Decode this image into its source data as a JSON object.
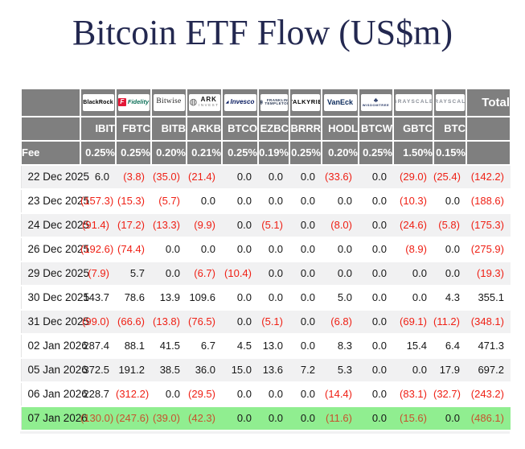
{
  "title": "Bitcoin ETF Flow (US$m)",
  "colors": {
    "header_gray": "#7f7f7f",
    "stripe_gray": "#f1f1f2",
    "highlight_green": "#90ee90",
    "negative_red": "#ef2015",
    "negative_on_green": "#c8522e",
    "title_navy": "#232850"
  },
  "table": {
    "fee_label": "Fee",
    "total_label": "Total",
    "highlight_date": "07 Jan 2026",
    "providers": [
      {
        "brand": "blackrock",
        "label": "BlackRock"
      },
      {
        "brand": "fidelity",
        "label": "Fidelity",
        "icon": {
          "name": "fidelity-f-icon",
          "glyph": "F"
        }
      },
      {
        "brand": "bitwise",
        "label": "Bitwise"
      },
      {
        "brand": "ark",
        "label": "ARK",
        "sub": "INVEST",
        "icon": {
          "name": "ark-circle-icon",
          "glyph": "◍"
        }
      },
      {
        "brand": "invesco",
        "label": "Invesco",
        "icon": {
          "name": "invesco-triangle-icon",
          "glyph": "◢"
        }
      },
      {
        "brand": "franklin",
        "label": "FRANKLIN",
        "sub": "TEMPLETON",
        "icon": {
          "name": "franklin-head-icon",
          "glyph": "◉"
        }
      },
      {
        "brand": "valkyrie",
        "label": "VALKYRIE"
      },
      {
        "brand": "vaneck",
        "label": "VanEck"
      },
      {
        "brand": "wisdomtree",
        "label": "WISDOMTREE",
        "icon": {
          "name": "wisdomtree-tree-icon",
          "glyph": "♣"
        }
      },
      {
        "brand": "grayscale",
        "label": "GRAYSCALE"
      },
      {
        "brand": "grayscale",
        "label": "GRAYSCALE"
      }
    ],
    "tickers": [
      "IBIT",
      "FBTC",
      "BITB",
      "ARKB",
      "BTCO",
      "EZBC",
      "BRRR",
      "HODL",
      "BTCW",
      "GBTC",
      "BTC"
    ],
    "fees": [
      "0.25%",
      "0.25%",
      "0.20%",
      "0.21%",
      "0.25%",
      "0.19%",
      "0.25%",
      "0.20%",
      "0.25%",
      "1.50%",
      "0.15%"
    ]
  },
  "chart_data": {
    "type": "table",
    "title": "Bitcoin ETF Flow (US$m)",
    "columns": [
      "Date",
      "IBIT",
      "FBTC",
      "BITB",
      "ARKB",
      "BTCO",
      "EZBC",
      "BRRR",
      "HODL",
      "BTCW",
      "GBTC",
      "BTC",
      "Total"
    ],
    "rows": [
      [
        "22 Dec 2025",
        6.0,
        -3.8,
        -35.0,
        -21.4,
        0.0,
        0.0,
        0.0,
        -33.6,
        0.0,
        -29.0,
        -25.4,
        -142.2
      ],
      [
        "23 Dec 2025",
        -157.3,
        -15.3,
        -5.7,
        0.0,
        0.0,
        0.0,
        0.0,
        0.0,
        0.0,
        -10.3,
        0.0,
        -188.6
      ],
      [
        "24 Dec 2025",
        -91.4,
        -17.2,
        -13.3,
        -9.9,
        0.0,
        -5.1,
        0.0,
        -8.0,
        0.0,
        -24.6,
        -5.8,
        -175.3
      ],
      [
        "26 Dec 2025",
        -192.6,
        -74.4,
        0.0,
        0.0,
        0.0,
        0.0,
        0.0,
        0.0,
        0.0,
        -8.9,
        0.0,
        -275.9
      ],
      [
        "29 Dec 2025",
        -7.9,
        5.7,
        0.0,
        -6.7,
        -10.4,
        0.0,
        0.0,
        0.0,
        0.0,
        0.0,
        0.0,
        -19.3
      ],
      [
        "30 Dec 2025",
        143.7,
        78.6,
        13.9,
        109.6,
        0.0,
        0.0,
        0.0,
        5.0,
        0.0,
        0.0,
        4.3,
        355.1
      ],
      [
        "31 Dec 2025",
        -99.0,
        -66.6,
        -13.8,
        -76.5,
        0.0,
        -5.1,
        0.0,
        -6.8,
        0.0,
        -69.1,
        -11.2,
        -348.1
      ],
      [
        "02 Jan 2026",
        287.4,
        88.1,
        41.5,
        6.7,
        4.5,
        13.0,
        0.0,
        8.3,
        0.0,
        15.4,
        6.4,
        471.3
      ],
      [
        "05 Jan 2026",
        372.5,
        191.2,
        38.5,
        36.0,
        15.0,
        13.6,
        7.2,
        5.3,
        0.0,
        0.0,
        17.9,
        697.2
      ],
      [
        "06 Jan 2026",
        228.7,
        -312.2,
        0.0,
        -29.5,
        0.0,
        0.0,
        0.0,
        -14.4,
        0.0,
        -83.1,
        -32.7,
        -243.2
      ],
      [
        "07 Jan 2026",
        -130.0,
        -247.6,
        -39.0,
        -42.3,
        0.0,
        0.0,
        0.0,
        -11.6,
        0.0,
        -15.6,
        0.0,
        -486.1
      ]
    ],
    "notes": "negative values rendered in parentheses and red; 07 Jan 2026 row highlighted green"
  }
}
